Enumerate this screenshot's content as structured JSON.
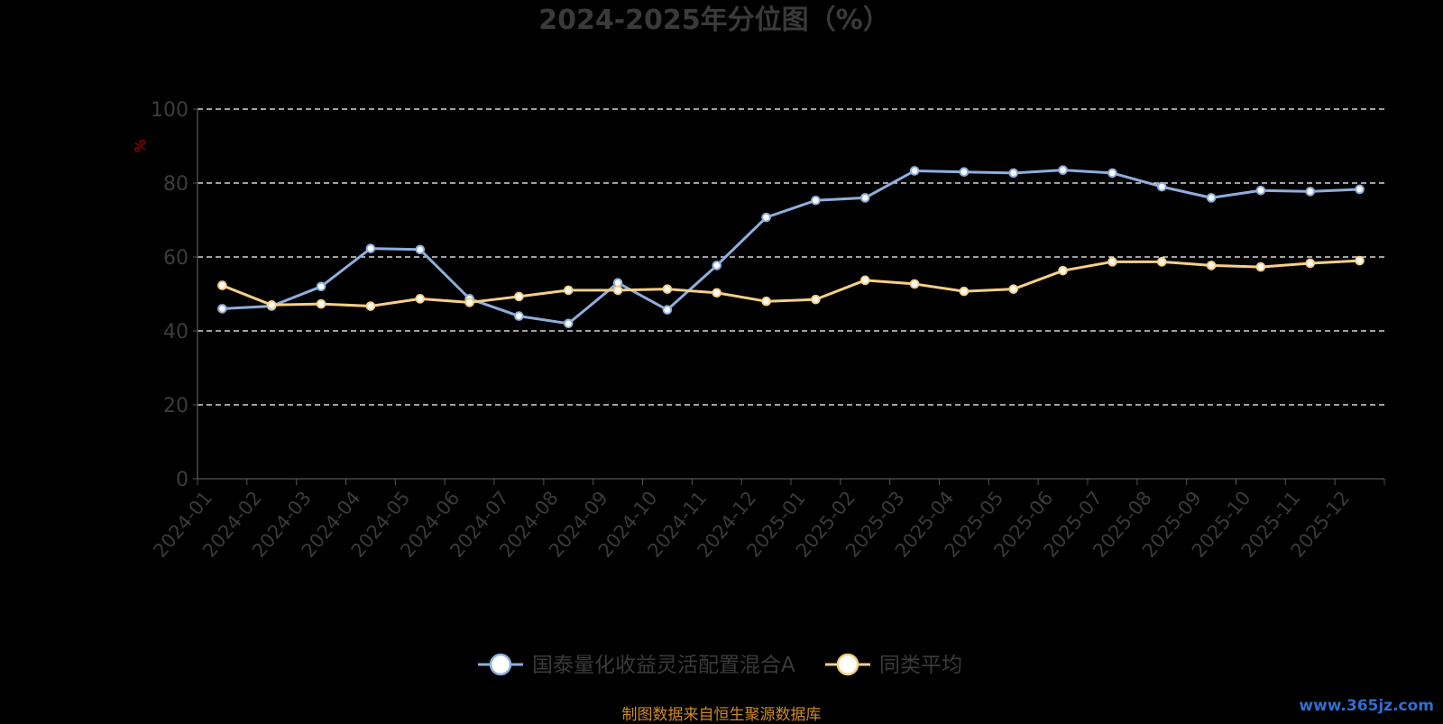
{
  "chart_data": {
    "type": "line",
    "title": "2024-2025年分位图（%）",
    "ylabel": "%",
    "ylim": [
      0,
      100
    ],
    "yticks": [
      0,
      20,
      40,
      60,
      80,
      100
    ],
    "grid": true,
    "legend_position": "bottom-center",
    "categories": [
      "2024-01",
      "2024-02",
      "2024-03",
      "2024-04",
      "2024-05",
      "2024-06",
      "2024-07",
      "2024-08",
      "2024-09",
      "2024-10",
      "2024-11",
      "2024-12",
      "2025-01",
      "2025-02",
      "2025-03",
      "2025-04",
      "2025-05",
      "2025-06",
      "2025-07",
      "2025-08",
      "2025-09",
      "2025-10",
      "2025-11",
      "2025-12"
    ],
    "series": [
      {
        "name": "国泰量化收益灵活配置混合A",
        "color": "#8eaedd",
        "values": [
          46.0,
          46.7,
          52.0,
          62.3,
          62.0,
          48.7,
          44.0,
          42.0,
          53.0,
          45.7,
          57.7,
          70.7,
          75.3,
          76.0,
          83.3,
          83.0,
          82.7,
          83.5,
          82.7,
          79.0,
          76.0,
          78.0,
          77.7,
          78.3
        ]
      },
      {
        "name": "同类平均",
        "color": "#f7cf86",
        "values": [
          52.3,
          47.0,
          47.3,
          46.7,
          48.7,
          47.7,
          49.3,
          51.0,
          51.0,
          51.3,
          50.3,
          48.0,
          48.5,
          53.7,
          52.7,
          50.7,
          51.3,
          56.3,
          58.7,
          58.7,
          57.7,
          57.3,
          58.3,
          59.0
        ]
      }
    ]
  },
  "footer": {
    "source": "制图数据来自恒生聚源数据库",
    "watermark": "www.365jz.com"
  }
}
